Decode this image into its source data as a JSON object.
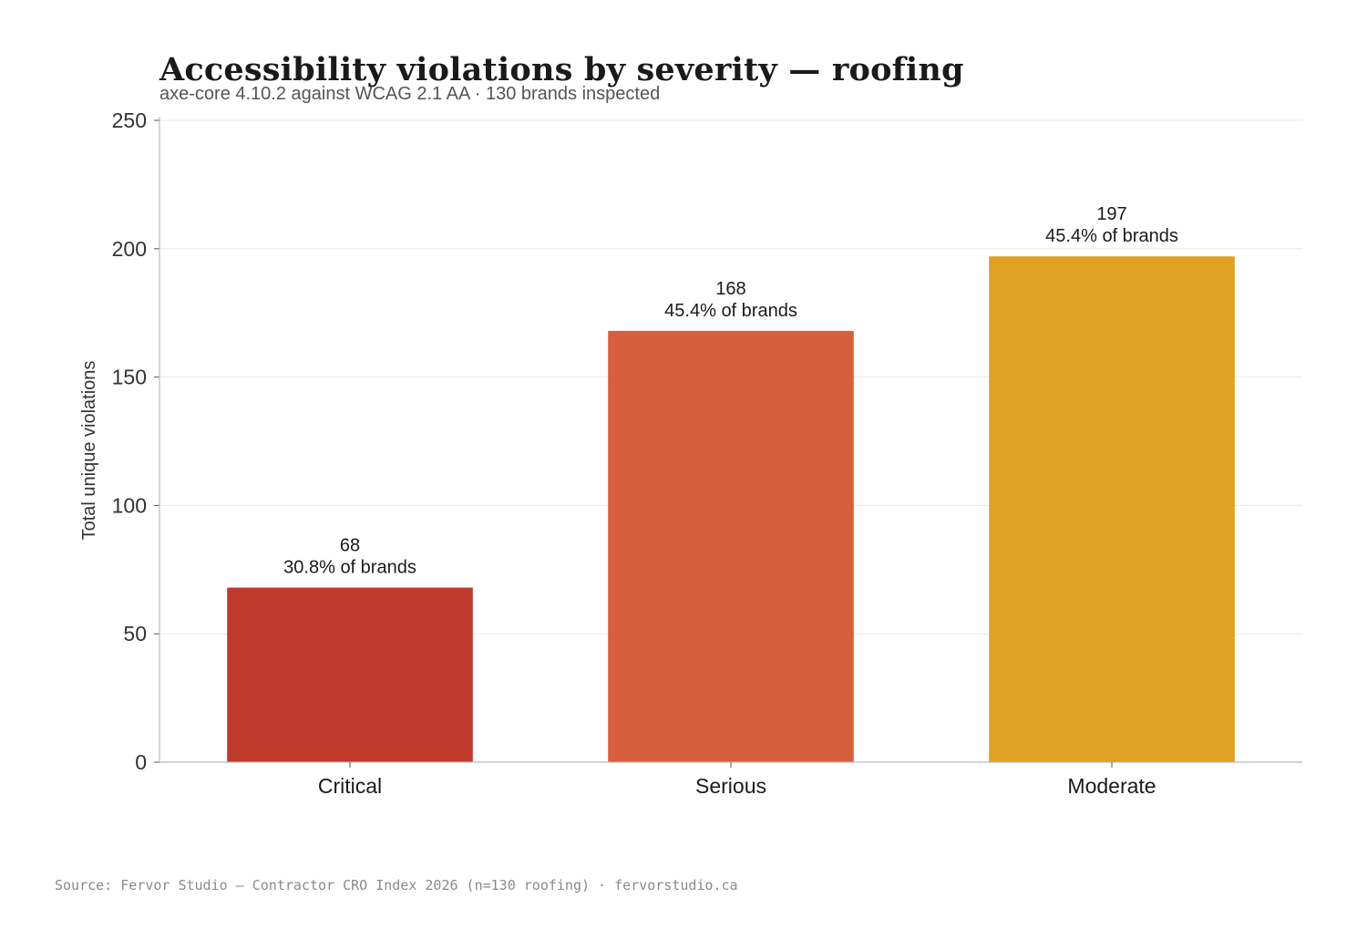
{
  "chart_data": {
    "type": "bar",
    "title": "Accessibility violations by severity — roofing",
    "subtitle": "axe-core 4.10.2 against WCAG 2.1 AA · 130 brands inspected",
    "categories": [
      "Critical",
      "Serious",
      "Moderate"
    ],
    "values": [
      68,
      168,
      197
    ],
    "data_labels": [
      {
        "count": "68",
        "share": "30.8% of brands"
      },
      {
        "count": "168",
        "share": "45.4% of brands"
      },
      {
        "count": "197",
        "share": "45.4% of brands"
      }
    ],
    "colors": [
      "#c0392b",
      "#d65f3d",
      "#dfa024"
    ],
    "xlabel": "",
    "ylabel": "Total unique violations",
    "ylim": [
      0,
      250
    ],
    "yticks": [
      0,
      50,
      100,
      150,
      200,
      250
    ],
    "grid": "horizontal",
    "source": "Source: Fervor Studio — Contractor CRO Index 2026 (n=130 roofing) · fervorstudio.ca"
  }
}
